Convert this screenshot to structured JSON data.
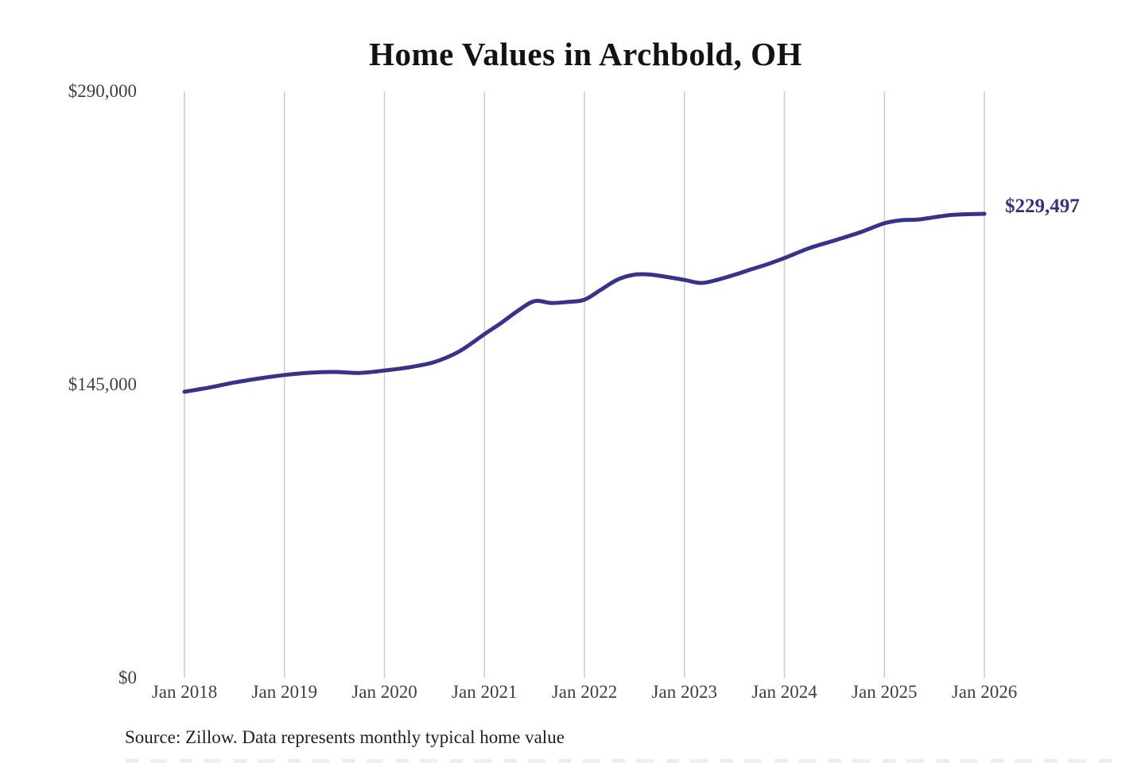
{
  "chart": {
    "title": "Home Values in Archbold, OH",
    "source_note": "Source: Zillow. Data represents monthly typical home value",
    "end_label": "$229,497",
    "colors": {
      "line": "#38338a",
      "end_label": "#34317f",
      "gridline": "#cccccc",
      "axis_text": "#3f3f3f",
      "title_text": "#131313",
      "source_text": "#1f1f1f",
      "background": "#ffffff"
    }
  },
  "chart_data": {
    "type": "line",
    "title": "Home Values in Archbold, OH",
    "xlabel": "",
    "ylabel": "",
    "x_tick_labels": [
      "Jan 2018",
      "Jan 2019",
      "Jan 2020",
      "Jan 2021",
      "Jan 2022",
      "Jan 2023",
      "Jan 2024",
      "Jan 2025",
      "Jan 2026"
    ],
    "y_ticks": [
      {
        "label": "$0",
        "value": 0
      },
      {
        "label": "$145,000",
        "value": 145000
      },
      {
        "label": "$290,000",
        "value": 290000
      }
    ],
    "ylim": [
      0,
      290000
    ],
    "x_range_months": [
      "2018-01",
      "2026-01"
    ],
    "grid": "vertical-only",
    "legend": "none",
    "annotation": "$229,497",
    "final_value": 229497,
    "series": [
      {
        "name": "Monthly typical home value",
        "points": [
          {
            "month": "2018-01",
            "value": 141500
          },
          {
            "month": "2018-04",
            "value": 143600
          },
          {
            "month": "2018-07",
            "value": 146100
          },
          {
            "month": "2018-10",
            "value": 148100
          },
          {
            "month": "2019-01",
            "value": 149800
          },
          {
            "month": "2019-04",
            "value": 150900
          },
          {
            "month": "2019-07",
            "value": 151300
          },
          {
            "month": "2019-10",
            "value": 150800
          },
          {
            "month": "2020-01",
            "value": 152000
          },
          {
            "month": "2020-04",
            "value": 153600
          },
          {
            "month": "2020-07",
            "value": 156200
          },
          {
            "month": "2020-10",
            "value": 161500
          },
          {
            "month": "2021-01",
            "value": 170000
          },
          {
            "month": "2021-03",
            "value": 175500
          },
          {
            "month": "2021-05",
            "value": 181500
          },
          {
            "month": "2021-07",
            "value": 186300
          },
          {
            "month": "2021-09",
            "value": 185400
          },
          {
            "month": "2021-11",
            "value": 185900
          },
          {
            "month": "2022-01",
            "value": 187000
          },
          {
            "month": "2022-03",
            "value": 192000
          },
          {
            "month": "2022-05",
            "value": 197000
          },
          {
            "month": "2022-07",
            "value": 199400
          },
          {
            "month": "2022-09",
            "value": 199400
          },
          {
            "month": "2022-11",
            "value": 198200
          },
          {
            "month": "2023-01",
            "value": 196800
          },
          {
            "month": "2023-03",
            "value": 195300
          },
          {
            "month": "2023-05",
            "value": 196900
          },
          {
            "month": "2023-07",
            "value": 199300
          },
          {
            "month": "2023-09",
            "value": 202000
          },
          {
            "month": "2023-11",
            "value": 204600
          },
          {
            "month": "2024-01",
            "value": 207600
          },
          {
            "month": "2024-04",
            "value": 212500
          },
          {
            "month": "2024-07",
            "value": 216300
          },
          {
            "month": "2024-10",
            "value": 220200
          },
          {
            "month": "2025-01",
            "value": 224800
          },
          {
            "month": "2025-03",
            "value": 226300
          },
          {
            "month": "2025-05",
            "value": 226600
          },
          {
            "month": "2025-07",
            "value": 227800
          },
          {
            "month": "2025-09",
            "value": 228900
          },
          {
            "month": "2025-11",
            "value": 229300
          },
          {
            "month": "2026-01",
            "value": 229497
          }
        ]
      }
    ]
  }
}
